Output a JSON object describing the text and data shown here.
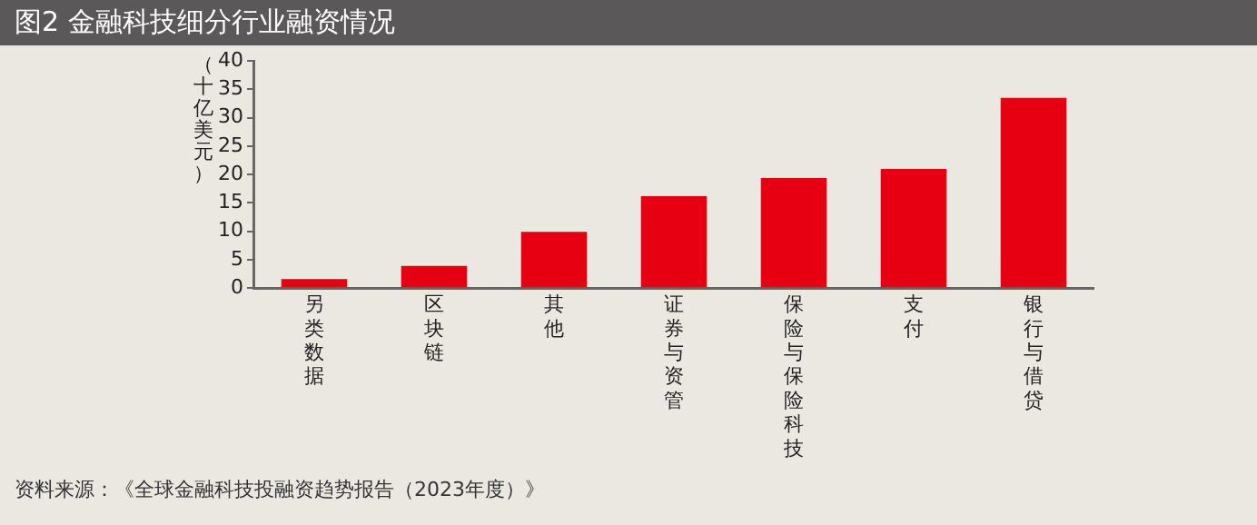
{
  "chart_data": {
    "type": "bar",
    "title": "图2 金融科技细分行业融资情况",
    "ylabel": "（十亿美元）",
    "categories": [
      "另类数据",
      "区块链",
      "其他",
      "证券与资管",
      "保险与保险科技",
      "支付",
      "银行与借贷"
    ],
    "values": [
      1.6,
      3.9,
      9.9,
      16.2,
      19.4,
      21.0,
      33.5
    ],
    "color": "#e60012",
    "ylim": [
      0,
      40
    ],
    "yticks": [
      0,
      5,
      10,
      15,
      20,
      25,
      30,
      35,
      40
    ],
    "grid": false,
    "legend": false,
    "annotations": [
      "资料来源：《全球金融科技投融资趋势报告（2023年度）》"
    ]
  }
}
